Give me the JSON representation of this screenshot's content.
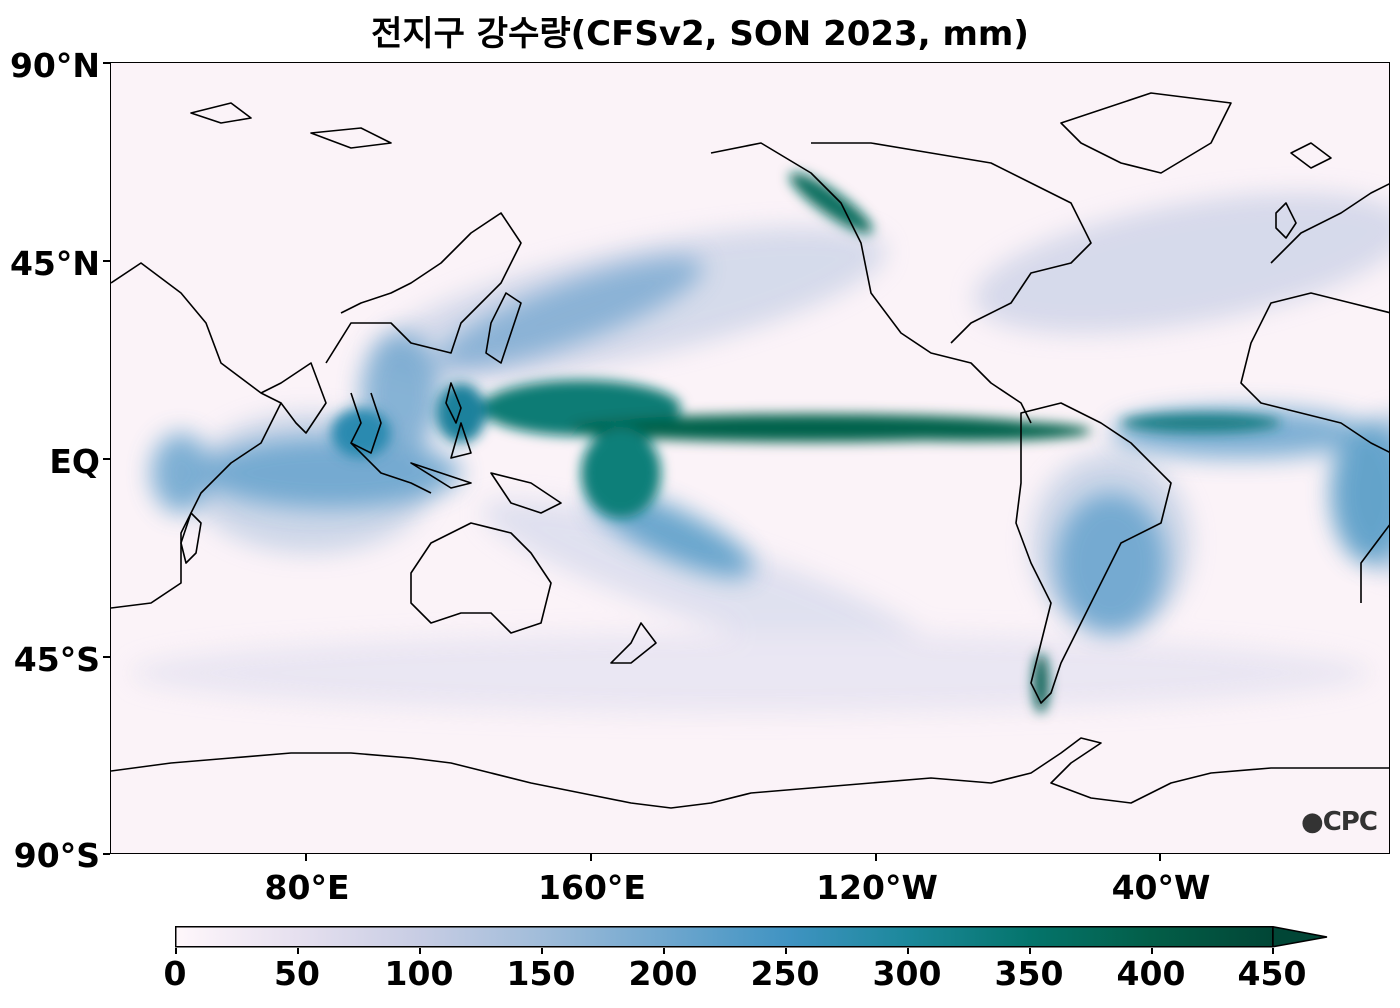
{
  "title": "전지구 강수량(CFSv2, SON 2023, mm)",
  "axes": {
    "y_ticks": [
      "90°N",
      "45°N",
      "EQ",
      "45°S",
      "90°S"
    ],
    "x_ticks": [
      "80°E",
      "160°E",
      "120°W",
      "40°W"
    ]
  },
  "colorbar": {
    "ticks": [
      "0",
      "50",
      "100",
      "150",
      "200",
      "250",
      "300",
      "350",
      "400",
      "450"
    ],
    "range": [
      0,
      450
    ],
    "extend": "max",
    "colormap": "PuBuGn",
    "colors": [
      "#fff7fb",
      "#e6e0ef",
      "#c8cde4",
      "#a2bdda",
      "#72a8cf",
      "#3f93c2",
      "#1b889a",
      "#04746b",
      "#035e48",
      "#014636"
    ]
  },
  "logo": "CPC",
  "map": {
    "projection": "equirectangular",
    "central_longitude": "160°E",
    "variable": "precipitation",
    "coastlines": true
  }
}
